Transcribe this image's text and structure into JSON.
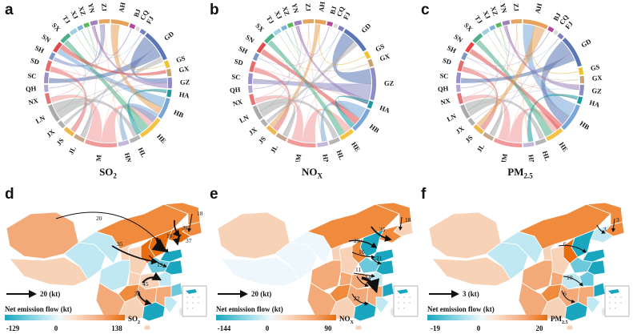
{
  "panels_top": [
    {
      "letter": "a",
      "pollutant": "SO",
      "sub": "2"
    },
    {
      "letter": "b",
      "pollutant": "NO",
      "sub": "X"
    },
    {
      "letter": "c",
      "pollutant": "PM",
      "sub": "2.5"
    }
  ],
  "chord_labels": {
    "a": [
      "AH",
      "BJ",
      "CQ",
      "FJ",
      "GD",
      "GS",
      "GX",
      "GZ",
      "HA",
      "HB",
      "HE",
      "HL",
      "HN",
      "IM",
      "JL",
      "JS",
      "JX",
      "LN",
      "NX",
      "QH",
      "SC",
      "SD",
      "SH",
      "SN",
      "SX",
      "TJ",
      "XJ",
      "XZ",
      "YN",
      "ZJ"
    ],
    "b": [
      "AH",
      "BJ",
      "CQ",
      "FJ",
      "GD",
      "GS",
      "GX",
      "GZ",
      "HA",
      "HB",
      "HE",
      "HL",
      "HN",
      "IM",
      "JL",
      "JS",
      "JX",
      "LN",
      "NX",
      "QH",
      "SC",
      "SD",
      "SH",
      "SN",
      "SX",
      "TJ",
      "XJ",
      "XZ",
      "YN",
      "ZJ"
    ],
    "c": [
      "AH",
      "BJ",
      "CQ",
      "FJ",
      "GD",
      "GS",
      "GX",
      "GZ",
      "HA",
      "HB",
      "HE",
      "HL",
      "HN",
      "IM",
      "JL",
      "JS",
      "JX",
      "LN",
      "NX",
      "QH",
      "SC",
      "SD",
      "SH",
      "SN",
      "SX",
      "TJ",
      "XJ",
      "XZ",
      "YN",
      "ZJ"
    ]
  },
  "colors": {
    "AH": "#e8a15a",
    "BJ": "#b3479a",
    "CQ": "#d9d9d9",
    "FJ": "#7b7fbf",
    "GD": "#5a76b5",
    "GS": "#f2c12e",
    "GX": "#c9a36b",
    "GZ": "#8e8cc4",
    "HA": "#1a9ba1",
    "HB": "#78a6d9",
    "HE": "#f5c242",
    "HL": "#b5b5b5",
    "HN": "#c4b8d8",
    "IM": "#f29a9a",
    "JL": "#c8a68e",
    "JS": "#f0b84a",
    "JX": "#b0b0b0",
    "LN": "#a9a9a9",
    "NX": "#e57575",
    "QH": "#b5a6d0",
    "SC": "#9b8fc8",
    "SD": "#e56c6c",
    "SH": "#7f96c8",
    "SN": "#e24a4a",
    "SX": "#4caf8a",
    "TJ": "#9fd0e0",
    "XJ": "#7fb3d5",
    "XZ": "#5cb85c",
    "YN": "#9e7fb8",
    "ZJ": "#e6a560"
  },
  "maps": [
    {
      "letter": "d",
      "arrow_label": "20 (kt)",
      "legend_title": "Net emission flow (kt)",
      "min": "-129",
      "mid": "0",
      "max": "138",
      "unit": "SO",
      "unit_sub": "2",
      "flows": [
        "20",
        "35",
        "107",
        "36",
        "18",
        "37",
        "19",
        "45",
        "33"
      ]
    },
    {
      "letter": "e",
      "arrow_label": "20 (kt)",
      "legend_title": "Net emission flow (kt)",
      "min": "-144",
      "mid": "0",
      "max": "90",
      "unit": "NO",
      "unit_sub": "X",
      "flows": [
        "29",
        "35",
        "18",
        "16",
        "21",
        "11",
        "14",
        "69",
        "22"
      ]
    },
    {
      "letter": "f",
      "arrow_label": "3 (kt)",
      "legend_title": "Net emission flow (kt)",
      "min": "-19",
      "mid": "0",
      "max": "20",
      "unit": "PM",
      "unit_sub": "2.5",
      "flows": [
        "6",
        "3",
        "3",
        "10",
        "6"
      ]
    }
  ]
}
